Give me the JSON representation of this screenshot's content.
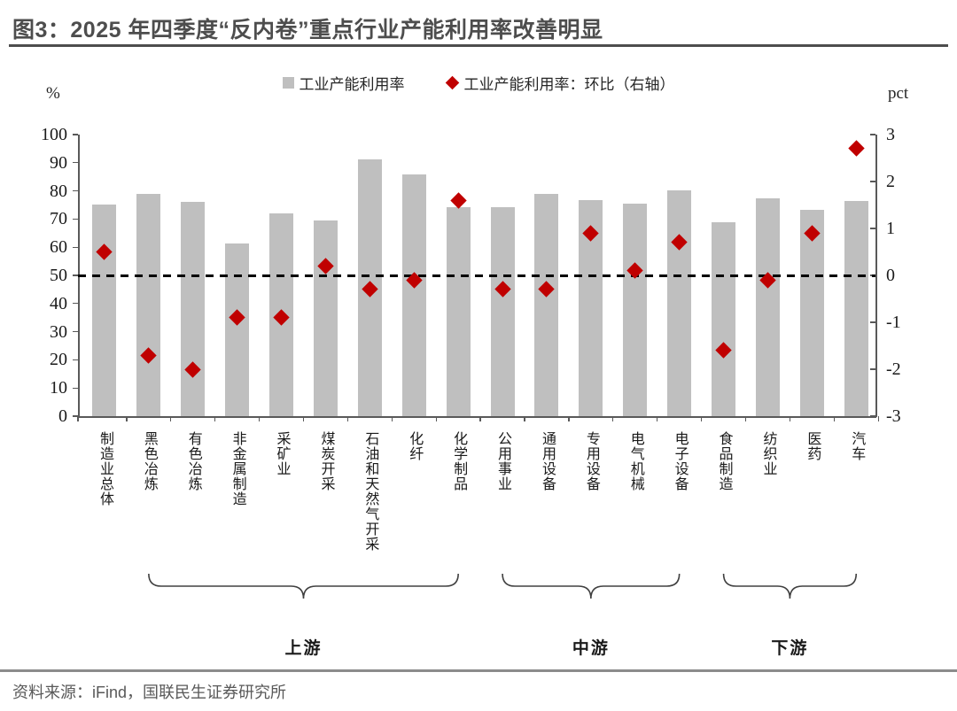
{
  "title": "图3：2025 年四季度“反内卷”重点行业产能利用率改善明显",
  "source": "资料来源：iFind，国联民生证券研究所",
  "colors": {
    "bar": "#bfbfbf",
    "diamond": "#c00000",
    "title": "#4d4d4d",
    "axis": "#595959",
    "zero_line": "#000000"
  },
  "chart_data": {
    "type": "bar",
    "title": "2025 年四季度“反内卷”重点行业产能利用率改善明显",
    "left_axis": {
      "unit": "%",
      "min": 0,
      "max": 100,
      "ticks": [
        0,
        10,
        20,
        30,
        40,
        50,
        60,
        70,
        80,
        90,
        100
      ]
    },
    "right_axis": {
      "unit": "pct",
      "min": -3,
      "max": 3,
      "ticks": [
        -3,
        -2,
        -1,
        0,
        1,
        2,
        3
      ]
    },
    "legend": [
      {
        "label": "工业产能利用率",
        "marker": "square",
        "color": "#bfbfbf"
      },
      {
        "label": "工业产能利用率：环比（右轴）",
        "marker": "diamond",
        "color": "#c00000"
      }
    ],
    "grid": false,
    "legend_position": "top-center",
    "categories": [
      "制造业总体",
      "黑色冶炼",
      "有色冶炼",
      "非金属制造",
      "采矿业",
      "煤炭开采",
      "石油和天然气开采",
      "化纤",
      "化学制品",
      "公用事业",
      "通用设备",
      "专用设备",
      "电气机械",
      "电子设备",
      "食品制造",
      "纺织业",
      "医药",
      "汽车"
    ],
    "series": [
      {
        "name": "工业产能利用率",
        "type": "bar",
        "axis": "left",
        "color": "#bfbfbf",
        "values": [
          75.3,
          78.8,
          76.2,
          61.4,
          72.0,
          69.5,
          91.3,
          85.8,
          74.3,
          74.2,
          79.0,
          76.8,
          75.5,
          80.2,
          68.9,
          77.5,
          73.2,
          76.4
        ]
      },
      {
        "name": "工业产能利用率：环比（右轴）",
        "type": "scatter",
        "marker": "diamond",
        "axis": "right",
        "color": "#c00000",
        "values": [
          0.5,
          -1.7,
          -2.0,
          -0.9,
          -0.9,
          0.2,
          -0.3,
          -0.1,
          1.6,
          -0.3,
          -0.3,
          0.9,
          0.1,
          0.7,
          -1.6,
          -0.1,
          0.9,
          2.7
        ]
      }
    ],
    "zero_line": {
      "axis": "right",
      "value": 0,
      "style": "dashed"
    },
    "groups": [
      {
        "label": "上游",
        "start": 1,
        "end": 8
      },
      {
        "label": "中游",
        "start": 9,
        "end": 13
      },
      {
        "label": "下游",
        "start": 14,
        "end": 17
      }
    ]
  }
}
